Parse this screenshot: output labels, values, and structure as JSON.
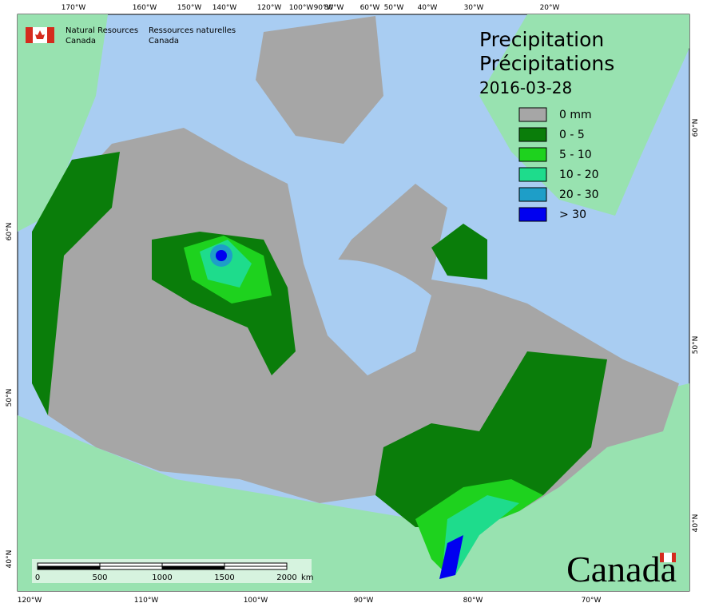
{
  "header": {
    "agency_en": [
      "Natural Resources",
      "Canada"
    ],
    "agency_fr": [
      "Ressources naturelles",
      "Canada"
    ]
  },
  "title": {
    "en": "Precipitation",
    "fr": "Précipitations",
    "date": "2016-03-28"
  },
  "legend": {
    "items": [
      {
        "label": "0 mm",
        "color": "#a6a6a6"
      },
      {
        "label": "0 - 5",
        "color": "#0a7d0a"
      },
      {
        "label": "5 - 10",
        "color": "#1ed21e"
      },
      {
        "label": "10 - 20",
        "color": "#1edc8c"
      },
      {
        "label": "20 - 30",
        "color": "#1e9ec8"
      },
      {
        "label": "> 30",
        "color": "#0000f0"
      }
    ]
  },
  "graticule": {
    "top": [
      "170°W",
      "160°W",
      "150°W",
      "140°W",
      "120°W",
      "100°W",
      "90°W",
      "80°W",
      "60°W",
      "50°W",
      "40°W",
      "30°W",
      "20°W"
    ],
    "bottom": [
      "120°W",
      "110°W",
      "100°W",
      "90°W",
      "80°W",
      "70°W"
    ],
    "left": [
      "60°N",
      "50°N",
      "40°N"
    ],
    "right": [
      "60°N",
      "50°N",
      "40°N"
    ]
  },
  "scale_bar": {
    "labels": [
      "0",
      "500",
      "1000",
      "1500",
      "2000"
    ],
    "unit": "km"
  },
  "wordmark": "Canada"
}
